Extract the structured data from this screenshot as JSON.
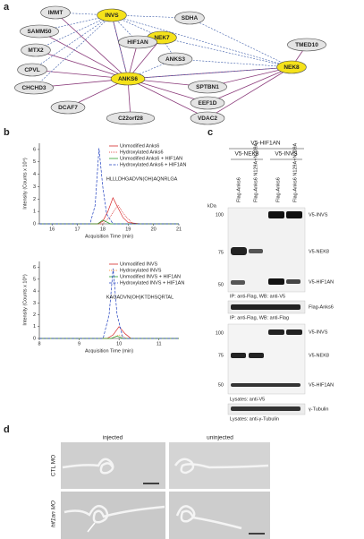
{
  "panel_labels": [
    "a",
    "b",
    "c",
    "d"
  ],
  "network": {
    "nodes": [
      {
        "label": "IMMT",
        "hit": false
      },
      {
        "label": "INVS",
        "hit": true
      },
      {
        "label": "SDHA",
        "hit": false
      },
      {
        "label": "SAMM50",
        "hit": false
      },
      {
        "label": "NEK7",
        "hit": true
      },
      {
        "label": "TMED10",
        "hit": false
      },
      {
        "label": "HIF1AN",
        "hit": false
      },
      {
        "label": "MTX2",
        "hit": false
      },
      {
        "label": "ANKS3",
        "hit": false
      },
      {
        "label": "NEK8",
        "hit": true
      },
      {
        "label": "CPVL",
        "hit": false
      },
      {
        "label": "ANKS6",
        "hit": true
      },
      {
        "label": "CHCHD3",
        "hit": false
      },
      {
        "label": "SPTBN1",
        "hit": false
      },
      {
        "label": "DCAF7",
        "hit": false
      },
      {
        "label": "EEF1D",
        "hit": false
      },
      {
        "label": "C22orf28",
        "hit": false
      },
      {
        "label": "VDAC2",
        "hit": false
      }
    ],
    "edges": [
      [
        11,
        0,
        "solid"
      ],
      [
        11,
        3,
        "solid"
      ],
      [
        11,
        7,
        "solid"
      ],
      [
        11,
        10,
        "solid"
      ],
      [
        11,
        12,
        "solid"
      ],
      [
        11,
        14,
        "solid"
      ],
      [
        11,
        16,
        "solid"
      ],
      [
        11,
        13,
        "solid"
      ],
      [
        11,
        15,
        "solid"
      ],
      [
        11,
        17,
        "solid"
      ],
      [
        11,
        9,
        "solid"
      ],
      [
        11,
        6,
        "solid"
      ],
      [
        11,
        1,
        "solid"
      ],
      [
        11,
        4,
        "solid"
      ],
      [
        1,
        0,
        "dashed"
      ],
      [
        1,
        3,
        "dashed"
      ],
      [
        1,
        7,
        "dashed"
      ],
      [
        1,
        10,
        "dashed"
      ],
      [
        1,
        12,
        "dashed"
      ],
      [
        1,
        2,
        "dashed"
      ],
      [
        1,
        4,
        "dashed"
      ],
      [
        1,
        9,
        "dashed"
      ],
      [
        1,
        6,
        "dashed"
      ],
      [
        9,
        4,
        "dashed"
      ],
      [
        9,
        5,
        "solid"
      ],
      [
        9,
        8,
        "dashed"
      ],
      [
        9,
        13,
        "solid"
      ],
      [
        9,
        15,
        "solid"
      ],
      [
        9,
        17,
        "solid"
      ],
      [
        9,
        2,
        "dashed"
      ],
      [
        9,
        11,
        "dashed"
      ],
      [
        4,
        8,
        "dashed"
      ],
      [
        4,
        6,
        "dashed"
      ],
      [
        11,
        8,
        "dashed"
      ],
      [
        1,
        11,
        "dashed"
      ]
    ]
  },
  "charts": [
    {
      "type": "line",
      "ylabel": "Intensity (Counts x 10⁴)",
      "xlabel": "Acquisition Time (min)",
      "annotation": "HLLLDHGADVN(OH)AQNRLGA",
      "xlim": [
        15.5,
        21
      ],
      "ylim": [
        0,
        6.5
      ],
      "xticks": [
        16,
        17,
        18,
        19,
        20,
        21
      ],
      "yticks": [
        0,
        1,
        2,
        3,
        4,
        5,
        6
      ],
      "series": [
        {
          "name": "Unmodified Anks6",
          "color": "#d62728",
          "style": "solid",
          "x": [
            15.5,
            16,
            17,
            17.8,
            18,
            18.2,
            18.4,
            18.6,
            18.8,
            19,
            19.5,
            21
          ],
          "values": [
            0,
            0,
            0,
            0,
            0.2,
            1.0,
            2.1,
            1.3,
            0.5,
            0.1,
            0,
            0
          ]
        },
        {
          "name": "Hydroxylated Anks6",
          "color": "#d62728",
          "style": "dotted",
          "x": [
            15.5,
            18,
            18.3,
            18.6,
            18.9,
            19.2,
            21
          ],
          "values": [
            0,
            0,
            0.6,
            1.5,
            0.6,
            0,
            0
          ]
        },
        {
          "name": "Unmodified Anks6 + HIF1AN",
          "color": "#2ca02c",
          "style": "solid",
          "x": [
            15.5,
            17.8,
            18,
            18.3,
            21
          ],
          "values": [
            0,
            0,
            0.3,
            0,
            0
          ]
        },
        {
          "name": "Hydroxylated Anks6 + HIF1AN",
          "color": "#1f3fbf",
          "style": "dashed",
          "x": [
            15.5,
            17.5,
            17.7,
            17.85,
            18,
            18.15,
            18.4,
            21
          ],
          "values": [
            0,
            0,
            1.5,
            6.1,
            3.0,
            0.8,
            0,
            0
          ]
        }
      ]
    },
    {
      "type": "line",
      "ylabel": "Intensity (Counts x 10⁶)",
      "xlabel": "Acquisition Time (min)",
      "annotation": "KAGADVN(OH)KTDHSQRTAL",
      "xlim": [
        8,
        11.5
      ],
      "ylim": [
        0,
        6.5
      ],
      "xticks": [
        8,
        9,
        10,
        11
      ],
      "yticks": [
        0,
        1,
        2,
        3,
        4,
        5,
        6
      ],
      "series": [
        {
          "name": "Unmodified INVS",
          "color": "#d62728",
          "style": "solid",
          "x": [
            8,
            9.7,
            9.85,
            10,
            10.15,
            10.3,
            11.5
          ],
          "values": [
            0,
            0,
            0.3,
            1.0,
            0.4,
            0,
            0
          ]
        },
        {
          "name": "Hydroxylated INVS",
          "color": "#ff7f0e",
          "style": "dotted",
          "x": [
            8,
            9.8,
            10,
            10.2,
            11.5
          ],
          "values": [
            0,
            0,
            0.3,
            0,
            0
          ]
        },
        {
          "name": "Unmodified INVS + HIF1AN",
          "color": "#2ca02c",
          "style": "solid",
          "x": [
            8,
            9.8,
            9.95,
            10.1,
            11.5
          ],
          "values": [
            0,
            0,
            0.2,
            0,
            0
          ]
        },
        {
          "name": "Hydroxylated INVS + HIF1AN",
          "color": "#1f3fbf",
          "style": "dashed",
          "x": [
            8,
            9.6,
            9.75,
            9.85,
            9.95,
            10.1,
            11.5
          ],
          "values": [
            0,
            0,
            2.0,
            5.9,
            2.0,
            0,
            0
          ]
        }
      ]
    }
  ],
  "blot": {
    "top": "V5-HIF1AN",
    "groups": [
      "V5-NEK8",
      "V5-INVS"
    ],
    "lanes": [
      "Flag-Anks6",
      "Flag-Anks6 N129A+N209A",
      "Flag-Anks6",
      "Flag-Anks6 N129A+N209A"
    ],
    "kda": "kDa",
    "markers1": [
      "100",
      "75",
      "50"
    ],
    "markers2": [
      "100",
      "75",
      "50"
    ],
    "bands1": [
      "V5-INVS",
      "V5-NEK8",
      "V5-HIF1AN"
    ],
    "caption1": "IP: anti-Flag, WB: anti-V5",
    "band_flag": "Flag-Anks6",
    "caption2": "IP: anti-Flag, WB: anti-Flag",
    "bands2": [
      "V5-INVS",
      "V5-NEK8",
      "V5-HIF1AN"
    ],
    "caption3": "Lysates: anti-V5",
    "band_tub": "γ-Tubulin",
    "caption4": "Lysates: anti-γ-Tubulin"
  },
  "micro": {
    "columns": [
      "injected",
      "uninjected"
    ],
    "rows": [
      "CTL MO",
      "hif1an MO"
    ]
  }
}
